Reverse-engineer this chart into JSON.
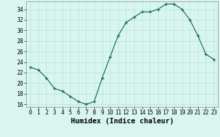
{
  "x": [
    0,
    1,
    2,
    3,
    4,
    5,
    6,
    7,
    8,
    9,
    10,
    11,
    12,
    13,
    14,
    15,
    16,
    17,
    18,
    19,
    20,
    21,
    22,
    23
  ],
  "y": [
    23,
    22.5,
    21,
    19,
    18.5,
    17.5,
    16.5,
    16,
    16.5,
    21,
    25,
    29,
    31.5,
    32.5,
    33.5,
    33.5,
    34,
    35,
    35,
    34,
    32,
    29,
    25.5,
    24.5
  ],
  "xlabel": "Humidex (Indice chaleur)",
  "ylim": [
    15.5,
    35.5
  ],
  "xlim": [
    -0.5,
    23.5
  ],
  "yticks": [
    16,
    18,
    20,
    22,
    24,
    26,
    28,
    30,
    32,
    34
  ],
  "xticks": [
    0,
    1,
    2,
    3,
    4,
    5,
    6,
    7,
    8,
    9,
    10,
    11,
    12,
    13,
    14,
    15,
    16,
    17,
    18,
    19,
    20,
    21,
    22,
    23
  ],
  "line_color": "#1a6b5a",
  "marker": "+",
  "background_color": "#d8f5f0",
  "grid_color": "#b8e0da",
  "tick_label_fontsize": 5.8,
  "xlabel_fontsize": 7.5
}
